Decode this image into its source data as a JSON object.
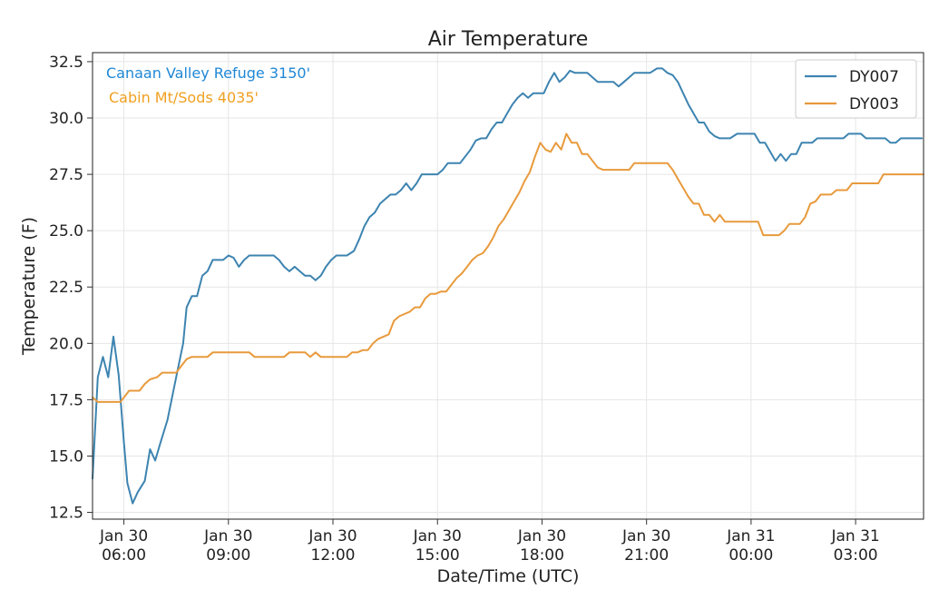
{
  "chart_data": {
    "type": "line",
    "title": "Air Temperature",
    "xlabel": "Date/Time (UTC)",
    "ylabel": "Temperature (F)",
    "ylim": [
      12.2,
      32.9
    ],
    "xlim": [
      5.1,
      28.95
    ],
    "x_unit": "hours from 2025-01-30 00:00 UTC",
    "x_ticks": [
      {
        "x": 6,
        "line1": "Jan 30",
        "line2": "06:00"
      },
      {
        "x": 9,
        "line1": "Jan 30",
        "line2": "09:00"
      },
      {
        "x": 12,
        "line1": "Jan 30",
        "line2": "12:00"
      },
      {
        "x": 15,
        "line1": "Jan 30",
        "line2": "15:00"
      },
      {
        "x": 18,
        "line1": "Jan 30",
        "line2": "18:00"
      },
      {
        "x": 21,
        "line1": "Jan 30",
        "line2": "21:00"
      },
      {
        "x": 24,
        "line1": "Jan 31",
        "line2": "00:00"
      },
      {
        "x": 27,
        "line1": "Jan 31",
        "line2": "03:00"
      }
    ],
    "y_ticks": [
      "12.5",
      "15.0",
      "17.5",
      "20.0",
      "22.5",
      "25.0",
      "27.5",
      "30.0",
      "32.5"
    ],
    "grid": true,
    "legend_position": "top-right",
    "annotations": [
      {
        "text": "Canaan Valley Refuge 3150'",
        "color": "#1f88d6"
      },
      {
        "text": "Cabin Mt/Sods 4035'",
        "color": "#f0a020"
      }
    ],
    "series": [
      {
        "name": "DY007",
        "color": "#3d84b0",
        "points": [
          [
            5.1,
            14.0
          ],
          [
            5.25,
            18.5
          ],
          [
            5.4,
            19.4
          ],
          [
            5.55,
            18.5
          ],
          [
            5.7,
            20.3
          ],
          [
            5.85,
            18.6
          ],
          [
            6.0,
            15.6
          ],
          [
            6.1,
            13.8
          ],
          [
            6.25,
            12.9
          ],
          [
            6.4,
            13.4
          ],
          [
            6.6,
            13.9
          ],
          [
            6.75,
            15.3
          ],
          [
            6.9,
            14.8
          ],
          [
            7.05,
            15.6
          ],
          [
            7.25,
            16.6
          ],
          [
            7.5,
            18.5
          ],
          [
            7.7,
            20.0
          ],
          [
            7.8,
            21.6
          ],
          [
            7.95,
            22.1
          ],
          [
            8.1,
            22.1
          ],
          [
            8.25,
            23.0
          ],
          [
            8.4,
            23.2
          ],
          [
            8.55,
            23.7
          ],
          [
            8.85,
            23.7
          ],
          [
            9.0,
            23.9
          ],
          [
            9.15,
            23.8
          ],
          [
            9.3,
            23.4
          ],
          [
            9.45,
            23.7
          ],
          [
            9.6,
            23.9
          ],
          [
            10.0,
            23.9
          ],
          [
            10.3,
            23.9
          ],
          [
            10.45,
            23.7
          ],
          [
            10.6,
            23.4
          ],
          [
            10.75,
            23.2
          ],
          [
            10.9,
            23.4
          ],
          [
            11.05,
            23.2
          ],
          [
            11.2,
            23.0
          ],
          [
            11.35,
            23.0
          ],
          [
            11.5,
            22.8
          ],
          [
            11.65,
            23.0
          ],
          [
            11.8,
            23.4
          ],
          [
            11.95,
            23.7
          ],
          [
            12.1,
            23.9
          ],
          [
            12.25,
            23.9
          ],
          [
            12.4,
            23.9
          ],
          [
            12.6,
            24.1
          ],
          [
            12.75,
            24.6
          ],
          [
            12.9,
            25.2
          ],
          [
            13.05,
            25.6
          ],
          [
            13.2,
            25.8
          ],
          [
            13.35,
            26.2
          ],
          [
            13.5,
            26.4
          ],
          [
            13.65,
            26.6
          ],
          [
            13.8,
            26.6
          ],
          [
            13.95,
            26.8
          ],
          [
            14.1,
            27.1
          ],
          [
            14.25,
            26.8
          ],
          [
            14.4,
            27.1
          ],
          [
            14.55,
            27.5
          ],
          [
            14.7,
            27.5
          ],
          [
            14.85,
            27.5
          ],
          [
            15.0,
            27.5
          ],
          [
            15.15,
            27.7
          ],
          [
            15.3,
            28.0
          ],
          [
            15.5,
            28.0
          ],
          [
            15.65,
            28.0
          ],
          [
            15.8,
            28.3
          ],
          [
            15.95,
            28.6
          ],
          [
            16.1,
            29.0
          ],
          [
            16.25,
            29.1
          ],
          [
            16.4,
            29.1
          ],
          [
            16.55,
            29.5
          ],
          [
            16.7,
            29.8
          ],
          [
            16.85,
            29.8
          ],
          [
            17.0,
            30.2
          ],
          [
            17.15,
            30.6
          ],
          [
            17.3,
            30.9
          ],
          [
            17.45,
            31.1
          ],
          [
            17.6,
            30.9
          ],
          [
            17.75,
            31.1
          ],
          [
            17.9,
            31.1
          ],
          [
            18.05,
            31.1
          ],
          [
            18.2,
            31.6
          ],
          [
            18.35,
            32.0
          ],
          [
            18.5,
            31.6
          ],
          [
            18.65,
            31.8
          ],
          [
            18.8,
            32.1
          ],
          [
            18.95,
            32.0
          ],
          [
            19.1,
            32.0
          ],
          [
            19.3,
            32.0
          ],
          [
            19.45,
            31.8
          ],
          [
            19.6,
            31.6
          ],
          [
            19.75,
            31.6
          ],
          [
            19.9,
            31.6
          ],
          [
            20.05,
            31.6
          ],
          [
            20.2,
            31.4
          ],
          [
            20.35,
            31.6
          ],
          [
            20.5,
            31.8
          ],
          [
            20.65,
            32.0
          ],
          [
            20.8,
            32.0
          ],
          [
            20.95,
            32.0
          ],
          [
            21.1,
            32.0
          ],
          [
            21.3,
            32.2
          ],
          [
            21.45,
            32.2
          ],
          [
            21.6,
            32.0
          ],
          [
            21.75,
            31.9
          ],
          [
            21.9,
            31.6
          ],
          [
            22.05,
            31.1
          ],
          [
            22.2,
            30.6
          ],
          [
            22.35,
            30.2
          ],
          [
            22.5,
            29.8
          ],
          [
            22.65,
            29.8
          ],
          [
            22.8,
            29.4
          ],
          [
            22.95,
            29.2
          ],
          [
            23.1,
            29.1
          ],
          [
            23.25,
            29.1
          ],
          [
            23.4,
            29.1
          ],
          [
            23.6,
            29.3
          ],
          [
            23.75,
            29.3
          ],
          [
            23.9,
            29.3
          ],
          [
            24.1,
            29.3
          ],
          [
            24.25,
            28.9
          ],
          [
            24.4,
            28.9
          ],
          [
            24.55,
            28.5
          ],
          [
            24.7,
            28.1
          ],
          [
            24.85,
            28.4
          ],
          [
            25.0,
            28.1
          ],
          [
            25.15,
            28.4
          ],
          [
            25.3,
            28.4
          ],
          [
            25.45,
            28.9
          ],
          [
            25.6,
            28.9
          ],
          [
            25.75,
            28.9
          ],
          [
            25.9,
            29.1
          ],
          [
            26.1,
            29.1
          ],
          [
            26.3,
            29.1
          ],
          [
            26.5,
            29.1
          ],
          [
            26.65,
            29.1
          ],
          [
            26.8,
            29.3
          ],
          [
            27.0,
            29.3
          ],
          [
            27.15,
            29.3
          ],
          [
            27.3,
            29.1
          ],
          [
            27.5,
            29.1
          ],
          [
            27.7,
            29.1
          ],
          [
            27.85,
            29.1
          ],
          [
            28.0,
            28.9
          ],
          [
            28.15,
            28.9
          ],
          [
            28.3,
            29.1
          ],
          [
            28.5,
            29.1
          ],
          [
            28.7,
            29.1
          ],
          [
            28.9,
            29.1
          ]
        ]
      },
      {
        "name": "DY003",
        "color": "#e89a3c",
        "points": [
          [
            5.1,
            17.6
          ],
          [
            5.25,
            17.4
          ],
          [
            5.5,
            17.4
          ],
          [
            5.75,
            17.4
          ],
          [
            5.9,
            17.4
          ],
          [
            6.0,
            17.6
          ],
          [
            6.15,
            17.9
          ],
          [
            6.45,
            17.9
          ],
          [
            6.6,
            18.2
          ],
          [
            6.75,
            18.4
          ],
          [
            6.95,
            18.5
          ],
          [
            7.1,
            18.7
          ],
          [
            7.25,
            18.7
          ],
          [
            7.5,
            18.7
          ],
          [
            7.65,
            19.0
          ],
          [
            7.8,
            19.3
          ],
          [
            7.95,
            19.4
          ],
          [
            8.1,
            19.4
          ],
          [
            8.4,
            19.4
          ],
          [
            8.55,
            19.6
          ],
          [
            9.0,
            19.6
          ],
          [
            9.3,
            19.6
          ],
          [
            9.6,
            19.6
          ],
          [
            9.75,
            19.4
          ],
          [
            10.0,
            19.4
          ],
          [
            10.3,
            19.4
          ],
          [
            10.6,
            19.4
          ],
          [
            10.75,
            19.6
          ],
          [
            11.0,
            19.6
          ],
          [
            11.2,
            19.6
          ],
          [
            11.35,
            19.4
          ],
          [
            11.5,
            19.6
          ],
          [
            11.65,
            19.4
          ],
          [
            11.9,
            19.4
          ],
          [
            12.2,
            19.4
          ],
          [
            12.4,
            19.4
          ],
          [
            12.55,
            19.6
          ],
          [
            12.7,
            19.6
          ],
          [
            12.85,
            19.7
          ],
          [
            13.0,
            19.7
          ],
          [
            13.15,
            20.0
          ],
          [
            13.3,
            20.2
          ],
          [
            13.45,
            20.3
          ],
          [
            13.6,
            20.4
          ],
          [
            13.75,
            21.0
          ],
          [
            13.9,
            21.2
          ],
          [
            14.05,
            21.3
          ],
          [
            14.2,
            21.4
          ],
          [
            14.35,
            21.6
          ],
          [
            14.5,
            21.6
          ],
          [
            14.65,
            22.0
          ],
          [
            14.8,
            22.2
          ],
          [
            14.95,
            22.2
          ],
          [
            15.1,
            22.3
          ],
          [
            15.25,
            22.3
          ],
          [
            15.4,
            22.6
          ],
          [
            15.55,
            22.9
          ],
          [
            15.7,
            23.1
          ],
          [
            15.85,
            23.4
          ],
          [
            16.0,
            23.7
          ],
          [
            16.15,
            23.9
          ],
          [
            16.3,
            24.0
          ],
          [
            16.45,
            24.3
          ],
          [
            16.6,
            24.7
          ],
          [
            16.75,
            25.2
          ],
          [
            16.9,
            25.5
          ],
          [
            17.05,
            25.9
          ],
          [
            17.2,
            26.3
          ],
          [
            17.35,
            26.7
          ],
          [
            17.5,
            27.2
          ],
          [
            17.65,
            27.6
          ],
          [
            17.8,
            28.3
          ],
          [
            17.95,
            28.9
          ],
          [
            18.1,
            28.6
          ],
          [
            18.25,
            28.5
          ],
          [
            18.4,
            28.9
          ],
          [
            18.55,
            28.6
          ],
          [
            18.7,
            29.3
          ],
          [
            18.85,
            28.9
          ],
          [
            19.0,
            28.9
          ],
          [
            19.15,
            28.4
          ],
          [
            19.3,
            28.4
          ],
          [
            19.45,
            28.1
          ],
          [
            19.6,
            27.8
          ],
          [
            19.75,
            27.7
          ],
          [
            19.9,
            27.7
          ],
          [
            20.1,
            27.7
          ],
          [
            20.3,
            27.7
          ],
          [
            20.5,
            27.7
          ],
          [
            20.65,
            28.0
          ],
          [
            20.8,
            28.0
          ],
          [
            21.0,
            28.0
          ],
          [
            21.2,
            28.0
          ],
          [
            21.4,
            28.0
          ],
          [
            21.6,
            28.0
          ],
          [
            21.75,
            27.7
          ],
          [
            21.9,
            27.3
          ],
          [
            22.05,
            26.9
          ],
          [
            22.2,
            26.5
          ],
          [
            22.35,
            26.2
          ],
          [
            22.5,
            26.2
          ],
          [
            22.65,
            25.7
          ],
          [
            22.8,
            25.7
          ],
          [
            22.95,
            25.4
          ],
          [
            23.1,
            25.7
          ],
          [
            23.25,
            25.4
          ],
          [
            23.4,
            25.4
          ],
          [
            23.6,
            25.4
          ],
          [
            23.8,
            25.4
          ],
          [
            24.0,
            25.4
          ],
          [
            24.2,
            25.4
          ],
          [
            24.35,
            24.8
          ],
          [
            24.5,
            24.8
          ],
          [
            24.65,
            24.8
          ],
          [
            24.8,
            24.8
          ],
          [
            24.95,
            25.0
          ],
          [
            25.1,
            25.3
          ],
          [
            25.25,
            25.3
          ],
          [
            25.4,
            25.3
          ],
          [
            25.55,
            25.6
          ],
          [
            25.7,
            26.2
          ],
          [
            25.85,
            26.3
          ],
          [
            26.0,
            26.6
          ],
          [
            26.15,
            26.6
          ],
          [
            26.3,
            26.6
          ],
          [
            26.45,
            26.8
          ],
          [
            26.6,
            26.8
          ],
          [
            26.75,
            26.8
          ],
          [
            26.9,
            27.1
          ],
          [
            27.1,
            27.1
          ],
          [
            27.3,
            27.1
          ],
          [
            27.5,
            27.1
          ],
          [
            27.65,
            27.1
          ],
          [
            27.8,
            27.5
          ],
          [
            28.0,
            27.5
          ],
          [
            28.2,
            27.5
          ],
          [
            28.4,
            27.5
          ],
          [
            28.6,
            27.5
          ],
          [
            28.95,
            27.5
          ]
        ]
      }
    ]
  }
}
